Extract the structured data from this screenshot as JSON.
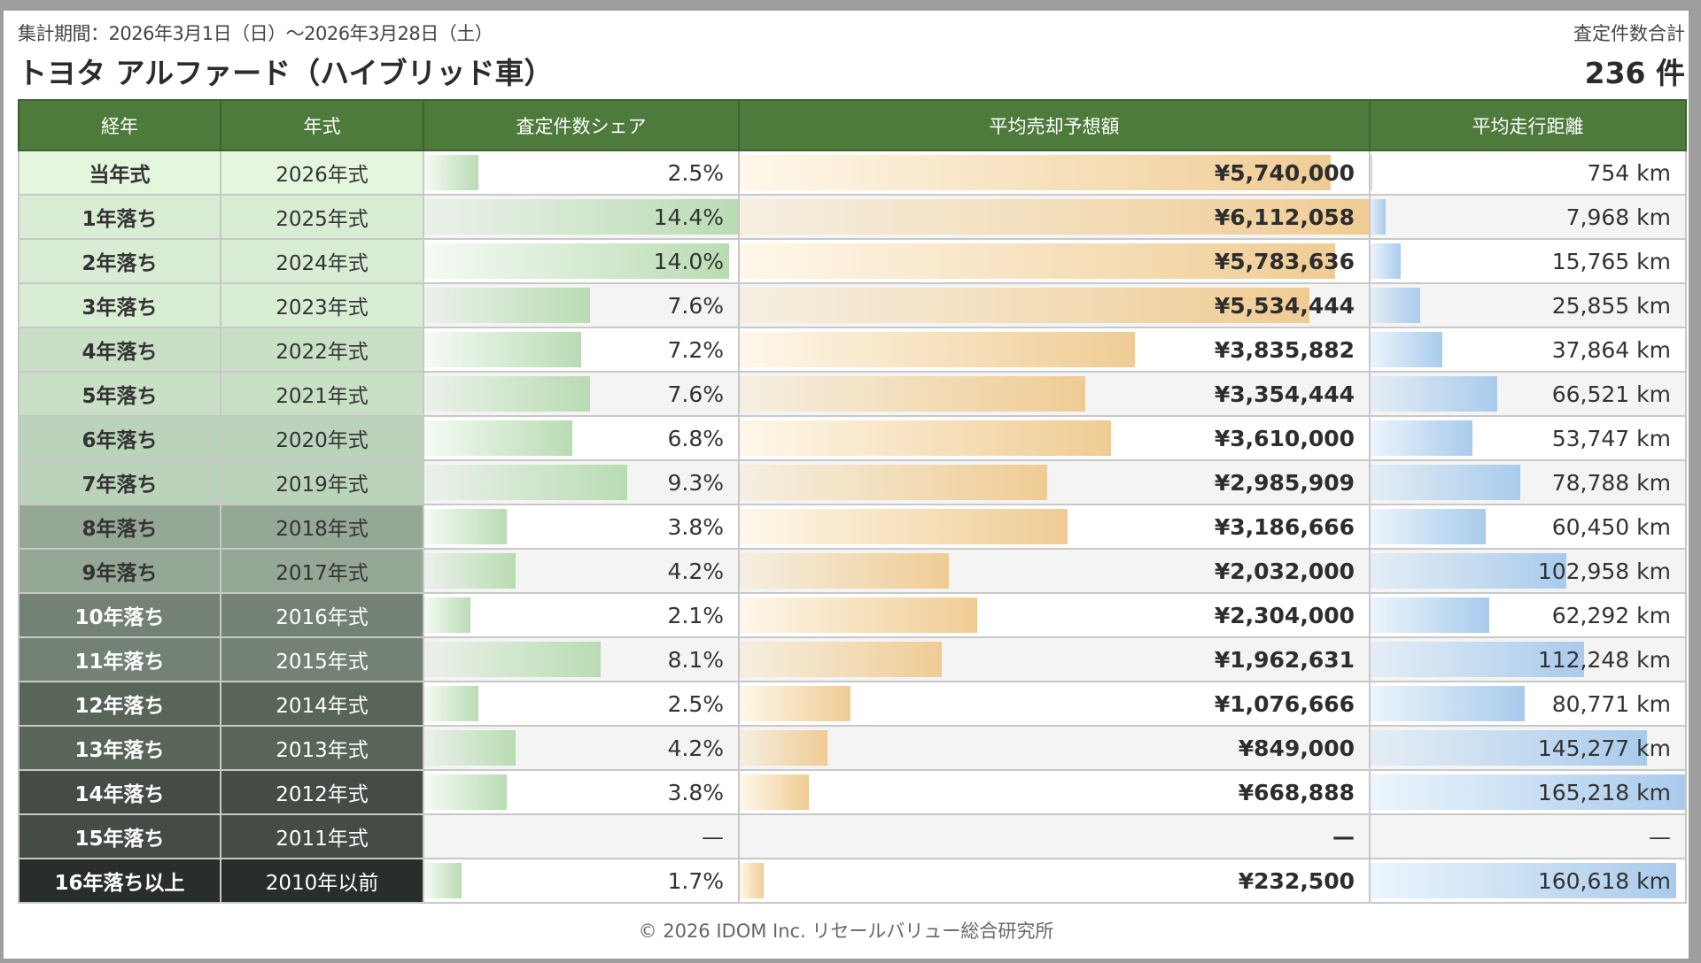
{
  "header": {
    "period": "集計期間：2026年3月1日（日）〜2026年3月28日（土）",
    "title": "トヨタ アルファード（ハイブリッド車）",
    "total_label": "査定件数合計",
    "total_value": "236 件"
  },
  "columns": [
    "経年",
    "年式",
    "査定件数シェア",
    "平均売却予想額",
    "平均走行距離"
  ],
  "colors": {
    "header_bg": "#4e7a3c",
    "share_bar": "#b9dcb3",
    "price_bar": "#f0cc94",
    "distance_bar": "#a9cbec"
  },
  "rows": [
    {
      "age": "当年式",
      "year": "2026年式",
      "share": "2.5%",
      "share_value": 2.5,
      "price": "¥5,740,000",
      "price_value": 5740000,
      "distance": "754 km",
      "distance_value": 754,
      "age_bg": "#e4f7de",
      "age_fg": "#333333"
    },
    {
      "age": "1年落ち",
      "year": "2025年式",
      "share": "14.4%",
      "share_value": 14.4,
      "price": "¥6,112,058",
      "price_value": 6112058,
      "distance": "7,968 km",
      "distance_value": 7968,
      "age_bg": "#d8edd3",
      "age_fg": "#333333"
    },
    {
      "age": "2年落ち",
      "year": "2024年式",
      "share": "14.0%",
      "share_value": 14.0,
      "price": "¥5,783,636",
      "price_value": 5783636,
      "distance": "15,765 km",
      "distance_value": 15765,
      "age_bg": "#d8edd3",
      "age_fg": "#333333"
    },
    {
      "age": "3年落ち",
      "year": "2023年式",
      "share": "7.6%",
      "share_value": 7.6,
      "price": "¥5,534,444",
      "price_value": 5534444,
      "distance": "25,855 km",
      "distance_value": 25855,
      "age_bg": "#d8edd3",
      "age_fg": "#333333"
    },
    {
      "age": "4年落ち",
      "year": "2022年式",
      "share": "7.2%",
      "share_value": 7.2,
      "price": "¥3,835,882",
      "price_value": 3835882,
      "distance": "37,864 km",
      "distance_value": 37864,
      "age_bg": "#c9e0c6",
      "age_fg": "#333333"
    },
    {
      "age": "5年落ち",
      "year": "2021年式",
      "share": "7.6%",
      "share_value": 7.6,
      "price": "¥3,354,444",
      "price_value": 3354444,
      "distance": "66,521 km",
      "distance_value": 66521,
      "age_bg": "#c9e0c6",
      "age_fg": "#333333"
    },
    {
      "age": "6年落ち",
      "year": "2020年式",
      "share": "6.8%",
      "share_value": 6.8,
      "price": "¥3,610,000",
      "price_value": 3610000,
      "distance": "53,747 km",
      "distance_value": 53747,
      "age_bg": "#bbd3bb",
      "age_fg": "#333333"
    },
    {
      "age": "7年落ち",
      "year": "2019年式",
      "share": "9.3%",
      "share_value": 9.3,
      "price": "¥2,985,909",
      "price_value": 2985909,
      "distance": "78,788 km",
      "distance_value": 78788,
      "age_bg": "#bbd3bb",
      "age_fg": "#333333"
    },
    {
      "age": "8年落ち",
      "year": "2018年式",
      "share": "3.8%",
      "share_value": 3.8,
      "price": "¥3,186,666",
      "price_value": 3186666,
      "distance": "60,450 km",
      "distance_value": 60450,
      "age_bg": "#95a795",
      "age_fg": "#333333"
    },
    {
      "age": "9年落ち",
      "year": "2017年式",
      "share": "4.2%",
      "share_value": 4.2,
      "price": "¥2,032,000",
      "price_value": 2032000,
      "distance": "102,958 km",
      "distance_value": 102958,
      "age_bg": "#95a795",
      "age_fg": "#333333"
    },
    {
      "age": "10年落ち",
      "year": "2016年式",
      "share": "2.1%",
      "share_value": 2.1,
      "price": "¥2,304,000",
      "price_value": 2304000,
      "distance": "62,292 km",
      "distance_value": 62292,
      "age_bg": "#738275",
      "age_fg": "#ffffff"
    },
    {
      "age": "11年落ち",
      "year": "2015年式",
      "share": "8.1%",
      "share_value": 8.1,
      "price": "¥1,962,631",
      "price_value": 1962631,
      "distance": "112,248 km",
      "distance_value": 112248,
      "age_bg": "#738275",
      "age_fg": "#ffffff"
    },
    {
      "age": "12年落ち",
      "year": "2014年式",
      "share": "2.5%",
      "share_value": 2.5,
      "price": "¥1,076,666",
      "price_value": 1076666,
      "distance": "80,771 km",
      "distance_value": 80771,
      "age_bg": "#5a6559",
      "age_fg": "#ffffff"
    },
    {
      "age": "13年落ち",
      "year": "2013年式",
      "share": "4.2%",
      "share_value": 4.2,
      "price": "¥849,000",
      "price_value": 849000,
      "distance": "145,277 km",
      "distance_value": 145277,
      "age_bg": "#5a6559",
      "age_fg": "#ffffff"
    },
    {
      "age": "14年落ち",
      "year": "2012年式",
      "share": "3.8%",
      "share_value": 3.8,
      "price": "¥668,888",
      "price_value": 668888,
      "distance": "165,218 km",
      "distance_value": 165218,
      "age_bg": "#454c45",
      "age_fg": "#ffffff"
    },
    {
      "age": "15年落ち",
      "year": "2011年式",
      "share": "—",
      "share_value": null,
      "price": "—",
      "price_value": null,
      "distance": "—",
      "distance_value": null,
      "age_bg": "#454c45",
      "age_fg": "#ffffff"
    },
    {
      "age": "16年落ち以上",
      "year": "2010年以前",
      "share": "1.7%",
      "share_value": 1.7,
      "price": "¥232,500",
      "price_value": 232500,
      "distance": "160,618 km",
      "distance_value": 160618,
      "age_bg": "#2a2e2a",
      "age_fg": "#ffffff"
    }
  ],
  "footer": "© 2026 IDOM Inc. リセールバリュー総合研究所"
}
